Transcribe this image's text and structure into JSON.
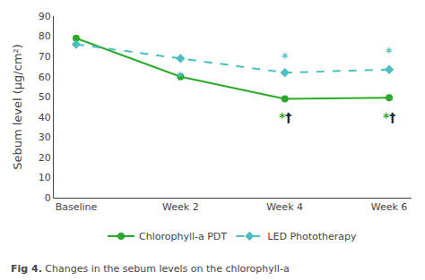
{
  "chart_data": {
    "type": "line",
    "categories": [
      "Baseline",
      "Week 2",
      "Week 4",
      "Week 6"
    ],
    "y_label": "Sebum level (μg/cm²)",
    "series": [
      {
        "name": "Chlorophyll-a PDT",
        "color": "#2aaa2a",
        "marker": "circle",
        "line_style": "solid",
        "values": [
          79,
          60,
          49,
          49.5
        ]
      },
      {
        "name": "LED Phototherapy",
        "color": "#4bbfbf",
        "marker": "diamond",
        "line_style": "dash",
        "values": [
          76,
          69,
          62,
          63.5
        ]
      }
    ],
    "ylim": [
      0,
      90
    ],
    "yticks": [
      0,
      10,
      20,
      30,
      40,
      50,
      60,
      70,
      80,
      90
    ],
    "grid": false,
    "legend": "bottom",
    "annotations": [
      {
        "x": "Week 2",
        "y": 56,
        "position": "above",
        "parts": [
          {
            "text": "*",
            "color": "#4bbfbf"
          }
        ]
      },
      {
        "x": "Week 4",
        "y": 65,
        "position": "above",
        "parts": [
          {
            "text": "*",
            "color": "#4bbfbf"
          }
        ]
      },
      {
        "x": "Week 4",
        "y": 44.5,
        "position": "below",
        "parts": [
          {
            "text": "*",
            "color": "#2aaa2a"
          },
          {
            "text": "†",
            "color": "#222222"
          }
        ]
      },
      {
        "x": "Week 6",
        "y": 68,
        "position": "above",
        "parts": [
          {
            "text": "*",
            "color": "#4bbfbf"
          }
        ]
      },
      {
        "x": "Week 6",
        "y": 44.5,
        "position": "below",
        "parts": [
          {
            "text": "*",
            "color": "#2aaa2a"
          },
          {
            "text": "†",
            "color": "#222222"
          }
        ]
      }
    ],
    "caption": [
      {
        "text": "Fig 4.",
        "bold": true
      },
      {
        "text": "Changes in the sebum levels on the chlorophyll-a",
        "bold": false
      }
    ]
  }
}
